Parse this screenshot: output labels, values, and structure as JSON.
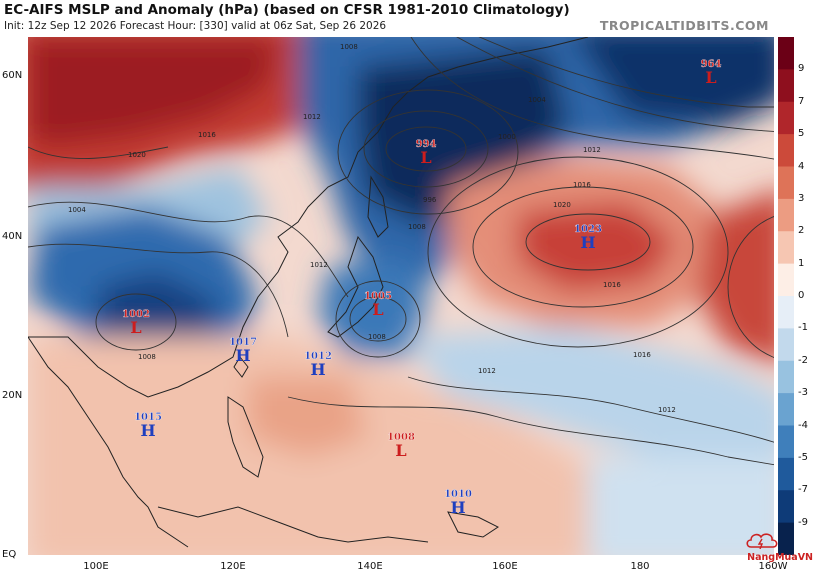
{
  "header": {
    "title": "EC-AIFS MSLP and Anomaly (hPa) (based on CFSR 1981-2010 Climatology)",
    "subtitle": "Init: 12z Sep 12 2026   Forecast Hour: [330]   valid at 06z Sat, Sep 26 2026",
    "brand": "TROPICALTIDBITS.COM"
  },
  "axes": {
    "lat_labels": [
      "60N",
      "40N",
      "20N",
      "EQ"
    ],
    "lon_labels": [
      "100E",
      "120E",
      "140E",
      "160E",
      "180",
      "160W"
    ]
  },
  "colorbar": {
    "labels": [
      "9",
      "7",
      "5",
      "4",
      "3",
      "2",
      "1",
      "0",
      "-1",
      "-2",
      "-3",
      "-4",
      "-5",
      "-7",
      "-9"
    ],
    "colors": [
      "#6b0016",
      "#8e0f1e",
      "#b0262b",
      "#cc4a3a",
      "#de7358",
      "#ec9c82",
      "#f6c6b2",
      "#fdeee6",
      "#e6eef7",
      "#c2d9ec",
      "#98c2e0",
      "#6aa3d0",
      "#3f7fbb",
      "#1f5a9c",
      "#0e3b78",
      "#08224d"
    ]
  },
  "pressure_centers": [
    {
      "value": "994",
      "type": "L",
      "kind": "low"
    },
    {
      "value": "964",
      "type": "L",
      "kind": "low"
    },
    {
      "value": "1023",
      "type": "H",
      "kind": "high"
    },
    {
      "value": "1002",
      "type": "L",
      "kind": "low"
    },
    {
      "value": "1005",
      "type": "L",
      "kind": "low"
    },
    {
      "value": "1017",
      "type": "H",
      "kind": "high"
    },
    {
      "value": "1012",
      "type": "H",
      "kind": "high"
    },
    {
      "value": "1015",
      "type": "H",
      "kind": "high"
    },
    {
      "value": "1008",
      "type": "L",
      "kind": "low"
    },
    {
      "value": "1010",
      "type": "H",
      "kind": "high"
    }
  ],
  "isobar_labels": [
    "1008",
    "1012",
    "1016",
    "1020",
    "1004",
    "1000",
    "996",
    "1012",
    "1016",
    "1020",
    "1008",
    "1012",
    "1016",
    "1004",
    "1008",
    "1012",
    "1016",
    "1008",
    "1012"
  ],
  "watermark": {
    "text": "NangMuaVN",
    "icon": "cloud-lightning-icon"
  },
  "style": {
    "low_color": "#cc1d1d",
    "high_color": "#1f3fbf"
  }
}
